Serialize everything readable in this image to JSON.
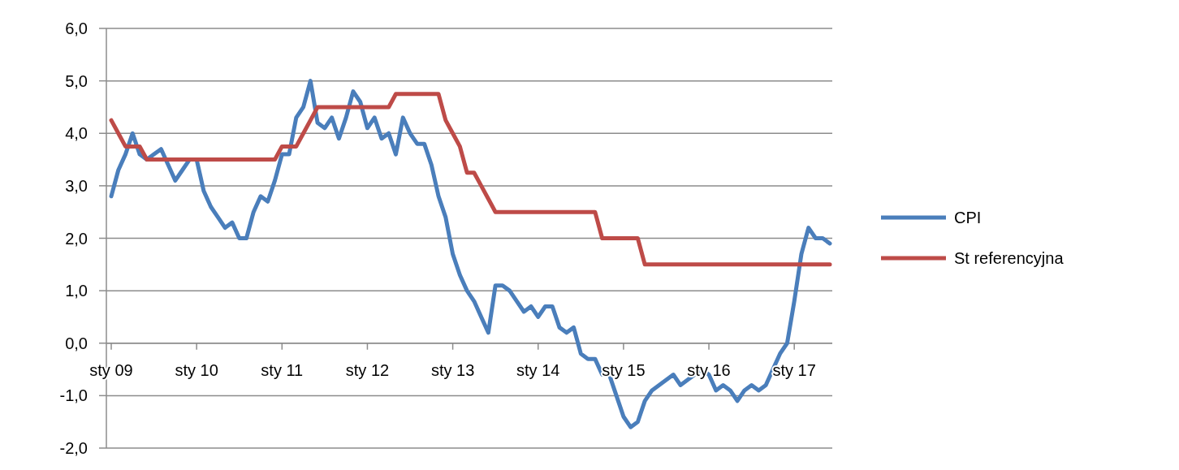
{
  "chart_data": {
    "type": "line",
    "categories": [
      "sty 09",
      null,
      null,
      null,
      null,
      null,
      null,
      null,
      null,
      null,
      null,
      null,
      "sty 10",
      null,
      null,
      null,
      null,
      null,
      null,
      null,
      null,
      null,
      null,
      null,
      "sty 11",
      null,
      null,
      null,
      null,
      null,
      null,
      null,
      null,
      null,
      null,
      null,
      "sty 12",
      null,
      null,
      null,
      null,
      null,
      null,
      null,
      null,
      null,
      null,
      null,
      "sty 13",
      null,
      null,
      null,
      null,
      null,
      null,
      null,
      null,
      null,
      null,
      null,
      "sty 14",
      null,
      null,
      null,
      null,
      null,
      null,
      null,
      null,
      null,
      null,
      null,
      "sty 15",
      null,
      null,
      null,
      null,
      null,
      null,
      null,
      null,
      null,
      null,
      null,
      "sty 16",
      null,
      null,
      null,
      null,
      null,
      null,
      null,
      null,
      null,
      null,
      null,
      "sty 17",
      null,
      null,
      null,
      null,
      null
    ],
    "series": [
      {
        "name": "CPI",
        "color": "#4a7ebb",
        "values": [
          2.8,
          3.3,
          3.6,
          4.0,
          3.6,
          3.5,
          3.6,
          3.7,
          3.4,
          3.1,
          3.3,
          3.5,
          3.5,
          2.9,
          2.6,
          2.4,
          2.2,
          2.3,
          2.0,
          2.0,
          2.5,
          2.8,
          2.7,
          3.1,
          3.6,
          3.6,
          4.3,
          4.5,
          5.0,
          4.2,
          4.1,
          4.3,
          3.9,
          4.3,
          4.8,
          4.6,
          4.1,
          4.3,
          3.9,
          4.0,
          3.6,
          4.3,
          4.0,
          3.8,
          3.8,
          3.4,
          2.8,
          2.4,
          1.7,
          1.3,
          1.0,
          0.8,
          0.5,
          0.2,
          1.1,
          1.1,
          1.0,
          0.8,
          0.6,
          0.7,
          0.5,
          0.7,
          0.7,
          0.3,
          0.2,
          0.3,
          -0.2,
          -0.3,
          -0.3,
          -0.6,
          -0.6,
          -1.0,
          -1.4,
          -1.6,
          -1.5,
          -1.1,
          -0.9,
          -0.8,
          -0.7,
          -0.6,
          -0.8,
          -0.7,
          -0.6,
          -0.5,
          -0.6,
          -0.9,
          -0.8,
          -0.9,
          -1.1,
          -0.9,
          -0.8,
          -0.9,
          -0.8,
          -0.5,
          -0.2,
          0.0,
          0.8,
          1.7,
          2.2,
          2.0,
          2.0,
          1.9
        ]
      },
      {
        "name": "St referencyjna",
        "color": "#be4b48",
        "values": [
          4.25,
          4.0,
          3.75,
          3.75,
          3.75,
          3.5,
          3.5,
          3.5,
          3.5,
          3.5,
          3.5,
          3.5,
          3.5,
          3.5,
          3.5,
          3.5,
          3.5,
          3.5,
          3.5,
          3.5,
          3.5,
          3.5,
          3.5,
          3.5,
          3.75,
          3.75,
          3.75,
          4.0,
          4.25,
          4.5,
          4.5,
          4.5,
          4.5,
          4.5,
          4.5,
          4.5,
          4.5,
          4.5,
          4.5,
          4.5,
          4.75,
          4.75,
          4.75,
          4.75,
          4.75,
          4.75,
          4.75,
          4.25,
          4.0,
          3.75,
          3.25,
          3.25,
          3.0,
          2.75,
          2.5,
          2.5,
          2.5,
          2.5,
          2.5,
          2.5,
          2.5,
          2.5,
          2.5,
          2.5,
          2.5,
          2.5,
          2.5,
          2.5,
          2.5,
          2.0,
          2.0,
          2.0,
          2.0,
          2.0,
          2.0,
          1.5,
          1.5,
          1.5,
          1.5,
          1.5,
          1.5,
          1.5,
          1.5,
          1.5,
          1.5,
          1.5,
          1.5,
          1.5,
          1.5,
          1.5,
          1.5,
          1.5,
          1.5,
          1.5,
          1.5,
          1.5,
          1.5,
          1.5,
          1.5,
          1.5,
          1.5,
          1.5
        ]
      }
    ],
    "ylim": [
      -2,
      6
    ],
    "yticks": [
      {
        "value": -2,
        "label": "-2,0"
      },
      {
        "value": -1,
        "label": "-1,0"
      },
      {
        "value": 0,
        "label": "0,0"
      },
      {
        "value": 1,
        "label": "1,0"
      },
      {
        "value": 2,
        "label": "2,0"
      },
      {
        "value": 3,
        "label": "3,0"
      },
      {
        "value": 4,
        "label": "4,0"
      },
      {
        "value": 5,
        "label": "5,0"
      },
      {
        "value": 6,
        "label": "6,0"
      }
    ],
    "grid": "y",
    "legend": "right",
    "marker": "none",
    "line_style": "solid"
  }
}
